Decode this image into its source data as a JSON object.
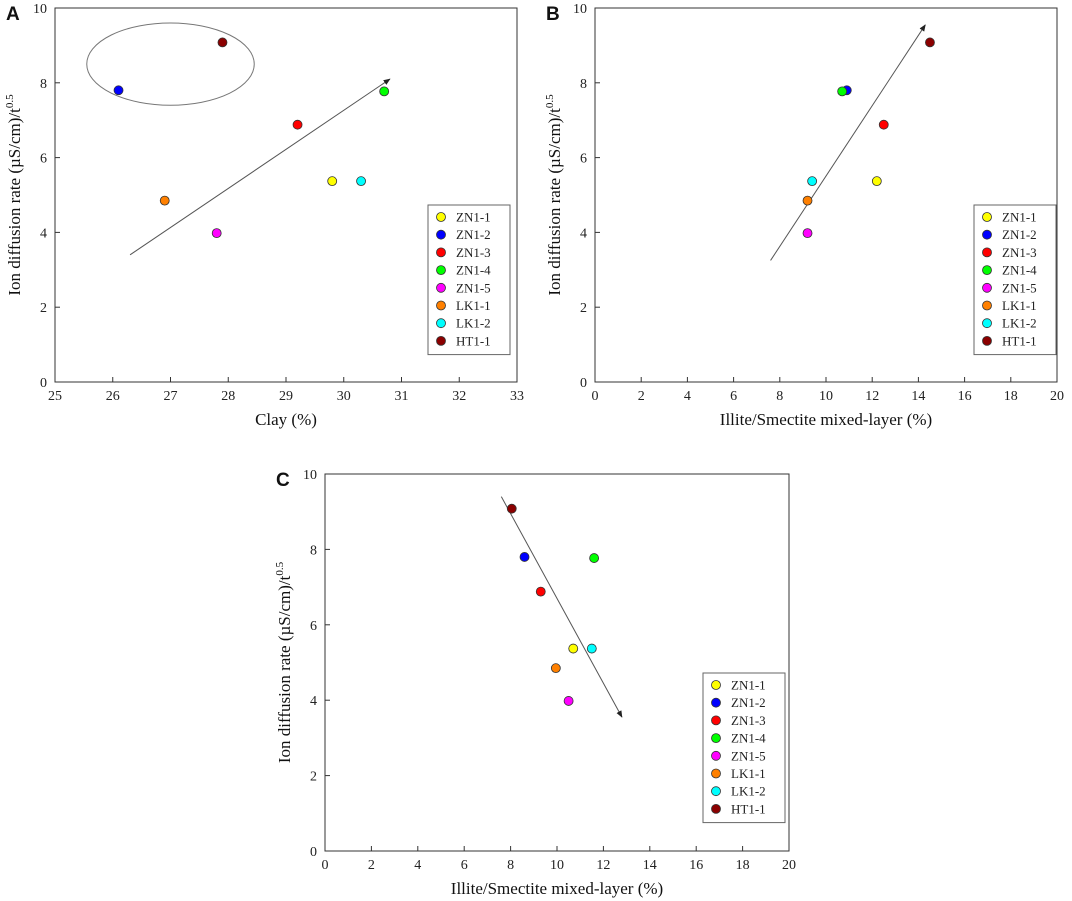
{
  "chart_data": [
    {
      "panel": "A",
      "type": "scatter",
      "xlabel": "Clay (%)",
      "ylabel": "Ion diffusion rate (µS/cm)/t",
      "ylabel_sup": "0.5",
      "xlim": [
        25,
        33
      ],
      "ylim": [
        0,
        10
      ],
      "xticks": [
        25,
        26,
        27,
        28,
        29,
        30,
        31,
        32,
        33
      ],
      "yticks": [
        0,
        2,
        4,
        6,
        8,
        10
      ],
      "series": [
        {
          "name": "ZN1-1",
          "color": "#ffff00",
          "x": 29.8,
          "y": 5.37
        },
        {
          "name": "ZN1-2",
          "color": "#0000ff",
          "x": 26.1,
          "y": 7.8
        },
        {
          "name": "ZN1-3",
          "color": "#ff0000",
          "x": 29.2,
          "y": 6.88
        },
        {
          "name": "ZN1-4",
          "color": "#00ff00",
          "x": 30.7,
          "y": 7.77
        },
        {
          "name": "ZN1-5",
          "color": "#ff00ff",
          "x": 27.8,
          "y": 3.98
        },
        {
          "name": "LK1-1",
          "color": "#ff8000",
          "x": 26.9,
          "y": 4.85
        },
        {
          "name": "LK1-2",
          "color": "#00ffff",
          "x": 30.3,
          "y": 5.37
        },
        {
          "name": "HT1-1",
          "color": "#8b0000",
          "x": 27.9,
          "y": 9.08
        }
      ],
      "trend_arrow": {
        "from": [
          26.3,
          3.4
        ],
        "to": [
          30.8,
          8.1
        ]
      },
      "ellipse": {
        "cx": 27.0,
        "cy": 8.5,
        "rx": 1.45,
        "ry": 1.1
      },
      "legend_position": "right-middle"
    },
    {
      "panel": "B",
      "type": "scatter",
      "xlabel": "Illite/Smectite mixed-layer (%)",
      "ylabel": "Ion diffusion rate (µS/cm)/t",
      "ylabel_sup": "0.5",
      "xlim": [
        0,
        20
      ],
      "ylim": [
        0,
        10
      ],
      "xticks": [
        0,
        2,
        4,
        6,
        8,
        10,
        12,
        14,
        16,
        18,
        20
      ],
      "yticks": [
        0,
        2,
        4,
        6,
        8,
        10
      ],
      "series": [
        {
          "name": "ZN1-1",
          "color": "#ffff00",
          "x": 12.2,
          "y": 5.37
        },
        {
          "name": "ZN1-2",
          "color": "#0000ff",
          "x": 10.9,
          "y": 7.8
        },
        {
          "name": "ZN1-3",
          "color": "#ff0000",
          "x": 12.5,
          "y": 6.88
        },
        {
          "name": "ZN1-4",
          "color": "#00ff00",
          "x": 10.7,
          "y": 7.77
        },
        {
          "name": "ZN1-5",
          "color": "#ff00ff",
          "x": 9.2,
          "y": 3.98
        },
        {
          "name": "LK1-1",
          "color": "#ff8000",
          "x": 9.2,
          "y": 4.85
        },
        {
          "name": "LK1-2",
          "color": "#00ffff",
          "x": 9.4,
          "y": 5.37
        },
        {
          "name": "HT1-1",
          "color": "#8b0000",
          "x": 14.5,
          "y": 9.08
        }
      ],
      "trend_arrow": {
        "from": [
          7.6,
          3.25
        ],
        "to": [
          14.3,
          9.55
        ]
      },
      "legend_position": "right-middle"
    },
    {
      "panel": "C",
      "type": "scatter",
      "xlabel": "Illite/Smectite mixed-layer (%)",
      "ylabel": "Ion diffusion rate (µS/cm)/t",
      "ylabel_sup": "0.5",
      "xlim": [
        0,
        20
      ],
      "ylim": [
        0,
        10
      ],
      "xticks": [
        0,
        2,
        4,
        6,
        8,
        10,
        12,
        14,
        16,
        18,
        20
      ],
      "yticks": [
        0,
        2,
        4,
        6,
        8,
        10
      ],
      "series": [
        {
          "name": "ZN1-1",
          "color": "#ffff00",
          "x": 10.7,
          "y": 5.37
        },
        {
          "name": "ZN1-2",
          "color": "#0000ff",
          "x": 8.6,
          "y": 7.8
        },
        {
          "name": "ZN1-3",
          "color": "#ff0000",
          "x": 9.3,
          "y": 6.88
        },
        {
          "name": "ZN1-4",
          "color": "#00ff00",
          "x": 11.6,
          "y": 7.77
        },
        {
          "name": "ZN1-5",
          "color": "#ff00ff",
          "x": 10.5,
          "y": 3.98
        },
        {
          "name": "LK1-1",
          "color": "#ff8000",
          "x": 9.95,
          "y": 4.85
        },
        {
          "name": "LK1-2",
          "color": "#00ffff",
          "x": 11.5,
          "y": 5.37
        },
        {
          "name": "HT1-1",
          "color": "#8b0000",
          "x": 8.05,
          "y": 9.08
        }
      ],
      "trend_arrow": {
        "from": [
          7.6,
          9.4
        ],
        "to": [
          12.8,
          3.55
        ]
      },
      "legend_position": "right-bottom"
    }
  ]
}
